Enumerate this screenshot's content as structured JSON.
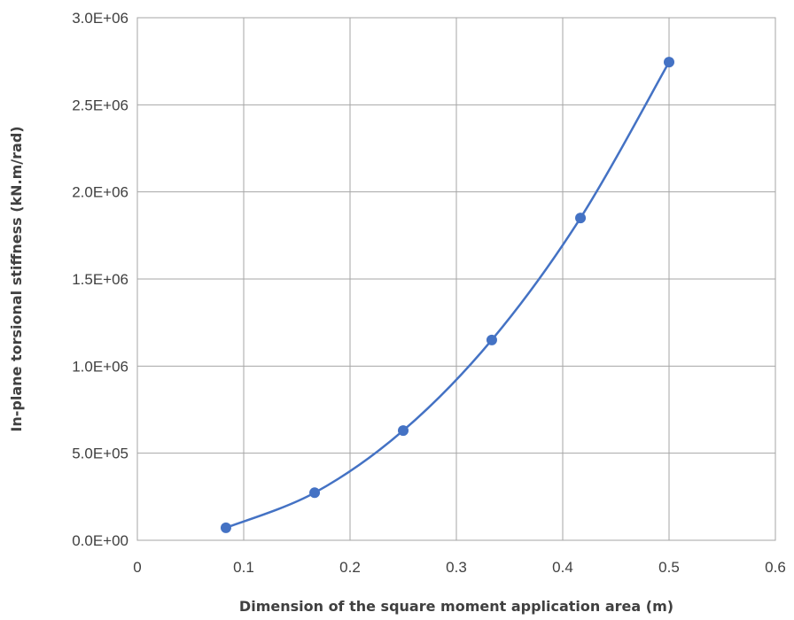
{
  "chart_data": {
    "type": "scatter",
    "title": "",
    "xlabel": "Dimension of the square moment application area (m)",
    "ylabel": "In-plane torsional stiffness (kN.m/rad)",
    "xlim": [
      0,
      0.6
    ],
    "ylim": [
      0,
      3000000
    ],
    "x_ticks": [
      "0",
      "0.1",
      "0.2",
      "0.3",
      "0.4",
      "0.5",
      "0.6"
    ],
    "y_ticks": [
      "0.0E+00",
      "5.0E+05",
      "1.0E+06",
      "1.5E+06",
      "2.0E+06",
      "2.5E+06",
      "3.0E+06"
    ],
    "grid": true,
    "smooth_line": true,
    "series": [
      {
        "x": [
          0.0833,
          0.1667,
          0.25,
          0.3333,
          0.4167,
          0.5
        ],
        "y": [
          72000,
          273000,
          630000,
          1150000,
          1850000,
          2745000
        ],
        "color": "#4472c4"
      }
    ]
  }
}
